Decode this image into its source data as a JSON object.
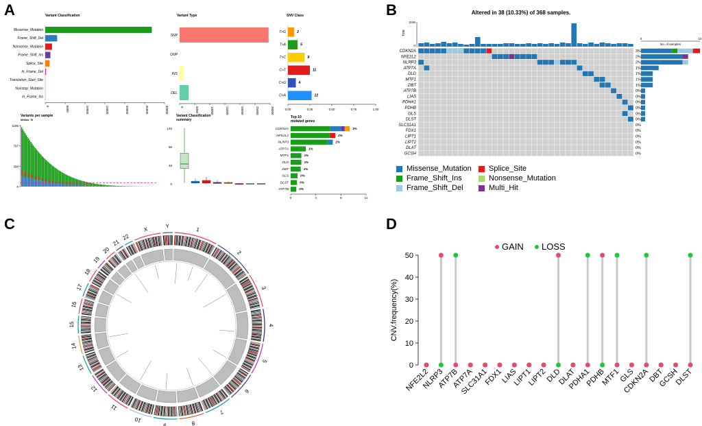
{
  "panels": {
    "a": "A",
    "b": "B",
    "c": "C",
    "d": "D"
  },
  "panel_a": {
    "variant_classification": {
      "title": "Variant Classification",
      "type": "bar",
      "categories": [
        "Missense_Mutation",
        "Frame_Shift_Del",
        "Nonsense_Mutation",
        "Frame_Shift_Ins",
        "Splice_Site",
        "In_Frame_Del",
        "Translation_Start_Site",
        "Nonstop_Mutation",
        "In_Frame_Ins"
      ],
      "values": [
        26800,
        3000,
        1700,
        1300,
        1100,
        200,
        100,
        50,
        50
      ],
      "colors": [
        "#1a9e1a",
        "#2b7cbc",
        "#e31a1c",
        "#6a3d9a",
        "#ff7f00",
        "#e7298a",
        "#b2df8a",
        "#a6cee3",
        "#fb9a99"
      ],
      "ticks": [
        "0",
        "5000",
        "10000",
        "15000",
        "20000",
        "25000",
        "30000"
      ],
      "xlim": [
        0,
        30000
      ]
    },
    "variant_type": {
      "title": "Variant Type",
      "type": "bar",
      "categories": [
        "SNP",
        "ONP",
        "INS",
        "DEL"
      ],
      "values": [
        29500,
        0,
        1200,
        3000
      ],
      "colors": [
        "#f8766d",
        "#cccccc",
        "#ffff99",
        "#66cdaa"
      ],
      "ticks": [
        "0",
        "5000",
        "10000",
        "15000",
        "20000",
        "25000",
        "30000"
      ],
      "xlim": [
        0,
        30000
      ]
    },
    "snv_class": {
      "title": "SNV Class",
      "type": "bar",
      "categories": [
        "T>G",
        "T>A",
        "T>C",
        "C>T",
        "C>G",
        "C>A"
      ],
      "values": [
        0.07,
        0.11,
        0.19,
        0.25,
        0.09,
        0.27
      ],
      "labels": [
        "3",
        "5",
        "9",
        "11",
        "4",
        "12"
      ],
      "colors": [
        "#ff9900",
        "#1a9e1a",
        "#ffcc00",
        "#e31a1c",
        "#3153b8",
        "#1e90ff"
      ],
      "ticks": [
        "0.00",
        "0.25",
        "0.50",
        "0.75",
        "1.00"
      ],
      "xlim": [
        0,
        1
      ]
    },
    "variants_per_sample": {
      "title": "Variants per sample",
      "median": "Median: 76",
      "yticks": [
        "1196",
        "797",
        "398",
        "0"
      ],
      "ylim": [
        0,
        1196
      ],
      "median_value": 76
    },
    "summary": {
      "title": "Variant Classification",
      "title2": "summary",
      "yticks": [
        "145",
        "96",
        "48",
        "0"
      ],
      "ylim": [
        0,
        145
      ],
      "boxes": [
        {
          "median": 52,
          "q1": 40,
          "q3": 80,
          "lo": 2,
          "hi": 145,
          "color": "#1a9e1a"
        },
        {
          "median": 4,
          "q1": 2,
          "q3": 7,
          "lo": 0,
          "hi": 14,
          "color": "#2b7cbc"
        },
        {
          "median": 4,
          "q1": 2,
          "q3": 9,
          "lo": 0,
          "hi": 18,
          "color": "#e31a1c"
        },
        {
          "median": 2,
          "q1": 1,
          "q3": 4,
          "lo": 0,
          "hi": 9,
          "color": "#6a3d9a"
        },
        {
          "median": 2,
          "q1": 1,
          "q3": 4,
          "lo": 0,
          "hi": 8,
          "color": "#ff7f00"
        },
        {
          "median": 0,
          "q1": 0,
          "q3": 1,
          "lo": 0,
          "hi": 3,
          "color": "#e7298a"
        },
        {
          "median": 0,
          "q1": 0,
          "q3": 1,
          "lo": 0,
          "hi": 2,
          "color": "#a6cee3"
        },
        {
          "median": 0,
          "q1": 0,
          "q3": 1,
          "lo": 0,
          "hi": 2,
          "color": "#fb9a99"
        }
      ]
    },
    "top10": {
      "title": "Top 10",
      "title2": "mutated genes",
      "genes": [
        "CDKN2A",
        "NFE2L2",
        "NLRP3",
        "ATP7A",
        "MTF1",
        "DLD",
        "DBT",
        "GLS",
        "DLST",
        "ATP7B"
      ],
      "labels": [
        "3%",
        "2%",
        "2%",
        "1%",
        "1%",
        "1%",
        "1%",
        "0%",
        "0%",
        "0%"
      ],
      "segments": [
        [
          {
            "v": 6.3,
            "c": "#1a9e1a"
          },
          {
            "v": 1.7,
            "c": "#2b7cbc"
          },
          {
            "v": 0.6,
            "c": "#6a3d9a"
          },
          {
            "v": 0.8,
            "c": "#ff9900"
          }
        ],
        [
          {
            "v": 6.2,
            "c": "#1a9e1a"
          },
          {
            "v": 0.9,
            "c": "#e31a1c"
          }
        ],
        [
          {
            "v": 5.8,
            "c": "#1a9e1a"
          },
          {
            "v": 0.9,
            "c": "#2b7cbc"
          }
        ],
        [
          {
            "v": 2.4,
            "c": "#1a9e1a"
          }
        ],
        [
          {
            "v": 1.7,
            "c": "#1a9e1a"
          }
        ],
        [
          {
            "v": 1.7,
            "c": "#1a9e1a"
          }
        ],
        [
          {
            "v": 1.6,
            "c": "#1a9e1a"
          }
        ],
        [
          {
            "v": 1.1,
            "c": "#1a9e1a"
          }
        ],
        [
          {
            "v": 1.0,
            "c": "#1a9e1a"
          }
        ],
        [
          {
            "v": 0.9,
            "c": "#1a9e1a"
          }
        ]
      ],
      "ticks": [
        "0",
        "4",
        "8",
        "12"
      ],
      "xlim": [
        0,
        12
      ]
    }
  },
  "panel_b": {
    "title": "Altered in 38 (10.33%) of 368 samples.",
    "tmb_label": "TMB",
    "tmb_max": "1196",
    "tmb_zero": "0",
    "no_samples_label": "No. of samples",
    "no_samples_ticks": [
      "0",
      "10"
    ],
    "genes": [
      "CDKN2A",
      "NFE2L2",
      "NLRP3",
      "ATP7A",
      "DLD",
      "MTF1",
      "DBT",
      "ATP7B",
      "LIAS",
      "PDHA1",
      "PDHB",
      "GLS",
      "DLST",
      "SLC31A1",
      "FDX1",
      "LIPT1",
      "LIPT2",
      "DLAT",
      "GCSH"
    ],
    "percents": [
      "3%",
      "2%",
      "2%",
      "1%",
      "1%",
      "1%",
      "1%",
      "0%",
      "0%",
      "0%",
      "0%",
      "0%",
      "0%",
      "0%",
      "0%",
      "0%",
      "0%",
      "0%",
      "0%"
    ],
    "sample_counts": [
      10,
      8,
      8,
      3,
      2,
      2,
      2,
      1,
      1,
      1,
      1,
      1,
      1,
      0,
      0,
      0,
      0,
      0,
      0
    ],
    "legend": [
      "Missense_Mutation",
      "Splice_Site",
      "Frame_Shift_Ins",
      "Nonsense_Mutation",
      "Frame_Shift_Del",
      "Multi_Hit"
    ],
    "legend_colors": [
      "#2176b3",
      "#e31a1c",
      "#1a9e1a",
      "#a6d96a",
      "#9ecae1",
      "#7b3294"
    ]
  },
  "panel_c": {
    "chromosomes": [
      "1",
      "2",
      "3",
      "4",
      "5",
      "6",
      "7",
      "8",
      "9",
      "10",
      "11",
      "12",
      "13",
      "14",
      "15",
      "16",
      "17",
      "18",
      "19",
      "20",
      "21",
      "22",
      "X",
      "Y"
    ]
  },
  "chart_data": {
    "type": "lollipop",
    "legend": [
      "GAIN",
      "LOSS"
    ],
    "gain_color": "#e84a6a",
    "loss_color": "#21c63b",
    "ylabel": "CNV.frequency(%)",
    "ylim": [
      0,
      50
    ],
    "yticks": [
      "0",
      "10",
      "20",
      "30",
      "40",
      "50"
    ],
    "categories": [
      "NFE2L2",
      "NLRP3",
      "ATP7B",
      "ATP7A",
      "SLC31A1",
      "FDX1",
      "LIAS",
      "LIPT1",
      "LIPT2",
      "DLD",
      "DLAT",
      "PDHA1",
      "PDHB",
      "MTF1",
      "GLS",
      "CDKN2A",
      "DBT",
      "GCSH",
      "DLST"
    ],
    "gain": [
      0,
      50,
      0,
      0,
      0,
      0,
      0,
      0,
      0,
      50,
      0,
      0,
      50,
      0,
      0,
      0,
      0,
      0,
      0
    ],
    "loss": [
      0,
      0,
      50,
      0,
      0,
      0,
      0,
      0,
      0,
      0,
      0,
      50,
      0,
      50,
      0,
      50,
      0,
      0,
      50
    ]
  }
}
